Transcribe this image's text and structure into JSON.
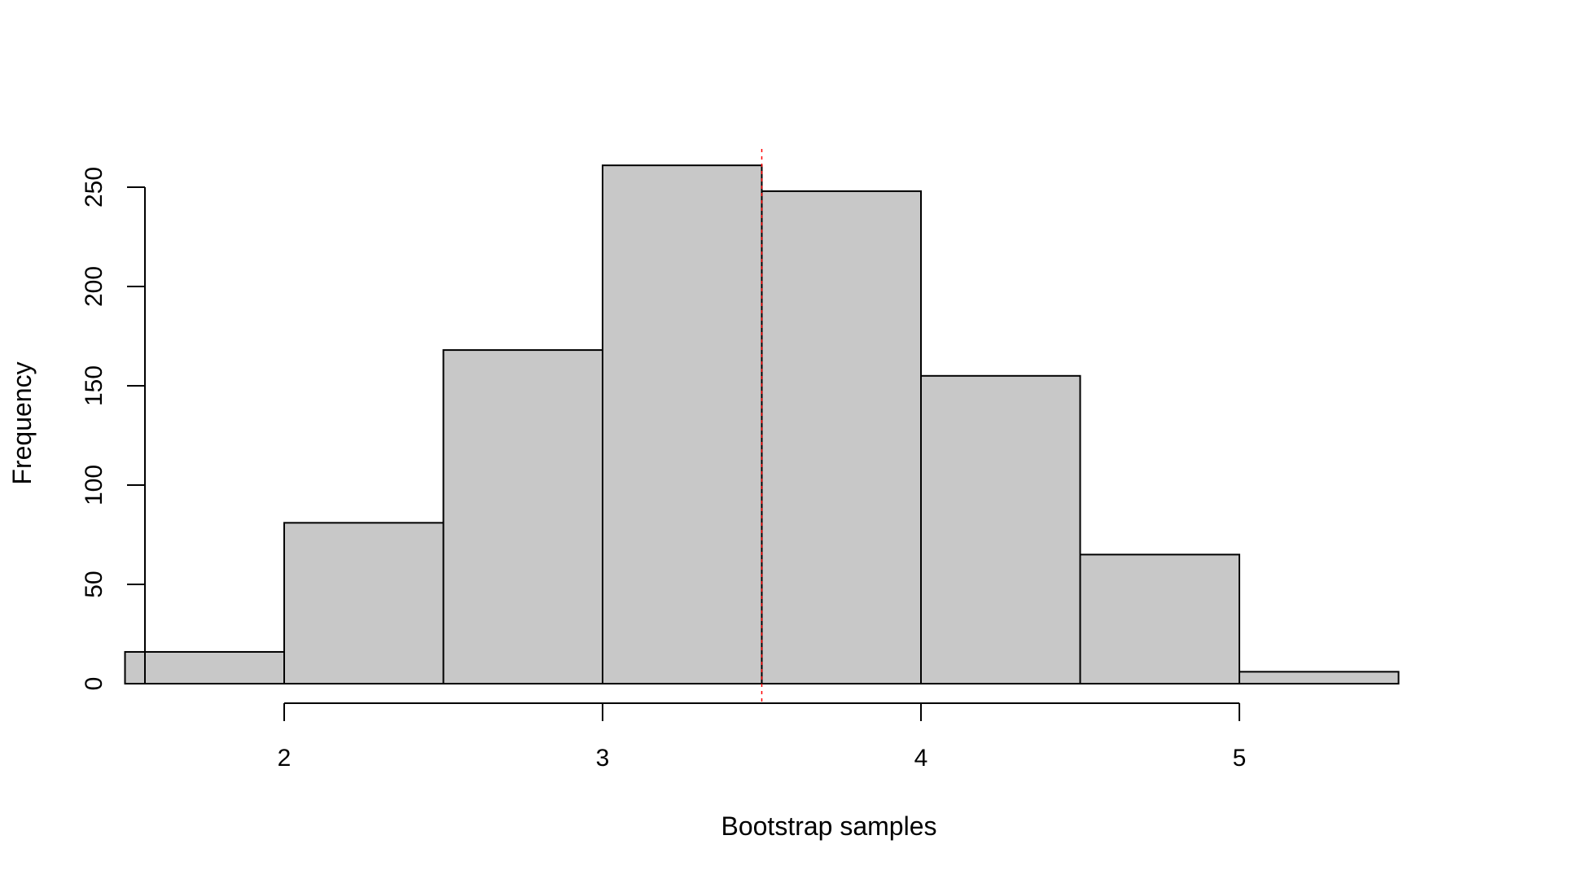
{
  "chart_data": {
    "type": "bar",
    "title": "",
    "xlabel": "Bootstrap samples",
    "ylabel": "Frequency",
    "bins": [
      {
        "x0": 1.5,
        "x1": 2.0,
        "count": 16
      },
      {
        "x0": 2.0,
        "x1": 2.5,
        "count": 81
      },
      {
        "x0": 2.5,
        "x1": 3.0,
        "count": 168
      },
      {
        "x0": 3.0,
        "x1": 3.5,
        "count": 261
      },
      {
        "x0": 3.5,
        "x1": 4.0,
        "count": 248
      },
      {
        "x0": 4.0,
        "x1": 4.5,
        "count": 155
      },
      {
        "x0": 4.5,
        "x1": 5.0,
        "count": 65
      },
      {
        "x0": 5.0,
        "x1": 5.5,
        "count": 6
      }
    ],
    "xticks": [
      2,
      3,
      4,
      5
    ],
    "yticks": [
      0,
      50,
      100,
      150,
      200,
      250
    ],
    "xlim": [
      1.5,
      5.5
    ],
    "ylim": [
      0,
      261
    ],
    "reference_line": {
      "x": 3.5,
      "color": "#ff0000",
      "style": "dashed"
    },
    "bar_fill": "#c8c8c8",
    "bar_stroke": "#000000",
    "grid": false
  }
}
